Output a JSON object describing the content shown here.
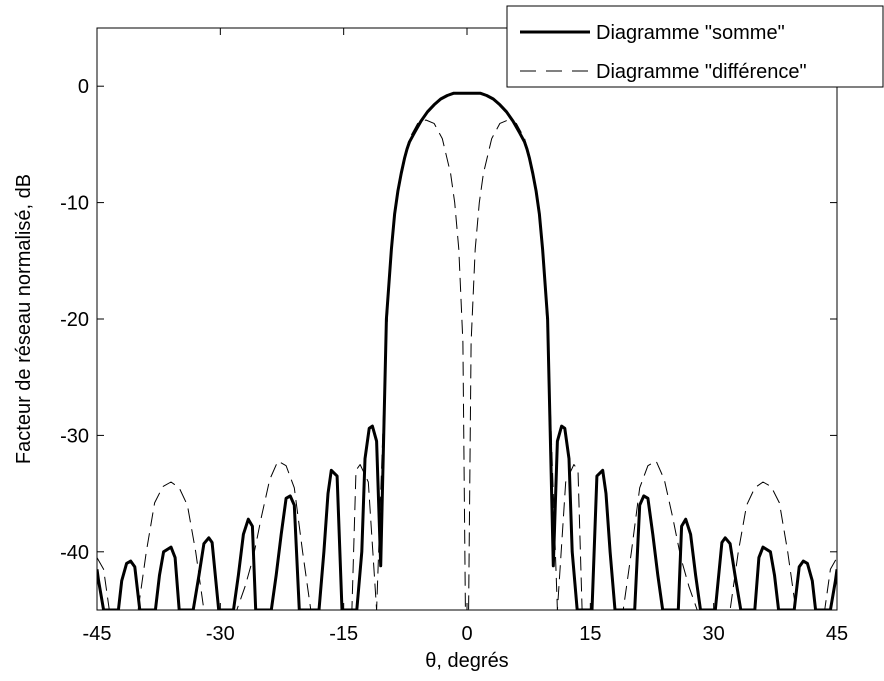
{
  "chart_data": {
    "type": "line",
    "title": "",
    "xlabel": "θ, degrés",
    "ylabel": "Facteur de réseau normalisé, dB",
    "xlim": [
      -45,
      45
    ],
    "ylim": [
      -45,
      5
    ],
    "xticks": [
      -45,
      -30,
      -15,
      0,
      15,
      30,
      45
    ],
    "yticks": [
      0,
      -10,
      -20,
      -30,
      -40
    ],
    "xtick_labels": [
      "-45",
      "-30",
      "-15",
      "0",
      "15",
      "30",
      "45"
    ],
    "ytick_labels": [
      "0",
      "-10",
      "-20",
      "-30",
      "-40"
    ],
    "grid": false,
    "legend_position": "top-right",
    "series": [
      {
        "name": "Diagramme \"somme\"",
        "style": "solid-thick",
        "color": "#000000",
        "x": [
          -45,
          -44.8,
          -44.2,
          -43.6,
          -43.0,
          -42.4,
          -42.0,
          -41.4,
          -40.9,
          -40.4,
          -39.8,
          -39.2,
          -38.5,
          -37.9,
          -37.4,
          -36.9,
          -36.0,
          -35.5,
          -35.0,
          -34.4,
          -33.9,
          -33.3,
          -32.6,
          -32.0,
          -31.4,
          -31.0,
          -30.2,
          -29.6,
          -29.0,
          -28.4,
          -27.8,
          -27.2,
          -26.6,
          -26.1,
          -25.7,
          -25.0,
          -24.4,
          -23.8,
          -23.2,
          -22.6,
          -22.0,
          -21.5,
          -21.0,
          -20.4,
          -19.8,
          -19.2,
          -18.6,
          -18.0,
          -17.4,
          -16.9,
          -16.5,
          -15.8,
          -15.2,
          -14.6,
          -14.0,
          -13.4,
          -12.8,
          -12.4,
          -11.9,
          -11.5,
          -11.0,
          -10.5,
          -9.8,
          -9.2,
          -8.8,
          -8.4,
          -8.0,
          -7.6,
          -7.3,
          -7.0,
          -6.4,
          -5.6,
          -4.8,
          -4.0,
          -3.2,
          -2.4,
          -1.6,
          -0.8,
          0,
          0.8,
          1.6,
          2.4,
          3.2,
          4.0,
          4.8,
          5.6,
          6.4,
          7.0,
          7.3,
          7.6,
          8.0,
          8.4,
          8.8,
          9.2,
          9.8,
          10.5,
          11.0,
          11.5,
          11.9,
          12.4,
          12.8,
          13.4,
          14.0,
          14.6,
          15.2,
          15.8,
          16.5,
          16.9,
          17.4,
          18.0,
          18.6,
          19.2,
          19.8,
          20.4,
          21.0,
          21.5,
          22.0,
          22.6,
          23.2,
          23.8,
          24.4,
          25.0,
          25.7,
          26.1,
          26.6,
          27.2,
          27.8,
          28.4,
          29.0,
          29.6,
          30.2,
          31.0,
          31.4,
          32.0,
          32.6,
          33.3,
          33.9,
          34.4,
          35.0,
          35.5,
          36.0,
          36.9,
          37.4,
          37.9,
          38.5,
          39.2,
          39.8,
          40.4,
          40.9,
          41.4,
          42.0,
          42.4,
          43.0,
          43.6,
          44.2,
          44.8,
          45
        ],
        "y": [
          -41.5,
          -42.5,
          -45,
          -45,
          -45,
          -45,
          -42.5,
          -41.0,
          -40.8,
          -41.3,
          -45,
          -45,
          -45,
          -45,
          -42.0,
          -40.0,
          -39.6,
          -40.5,
          -45,
          -45,
          -45,
          -45,
          -42.0,
          -39.3,
          -38.8,
          -39.2,
          -45,
          -45,
          -45,
          -45,
          -42.0,
          -38.5,
          -37.2,
          -37.8,
          -45,
          -45,
          -45,
          -45,
          -42.0,
          -38.5,
          -35.4,
          -35.2,
          -36.0,
          -45,
          -45,
          -45,
          -45,
          -45,
          -40.0,
          -35.0,
          -33.0,
          -33.5,
          -45,
          -45,
          -45,
          -45,
          -40.0,
          -32.0,
          -29.4,
          -29.2,
          -30.5,
          -41.2,
          -20.0,
          -14.0,
          -11.0,
          -9.0,
          -7.5,
          -6.2,
          -5.4,
          -4.8,
          -4.0,
          -3.0,
          -2.2,
          -1.6,
          -1.1,
          -0.8,
          -0.6,
          -0.6,
          -0.6,
          -0.6,
          -0.6,
          -0.8,
          -1.1,
          -1.6,
          -2.2,
          -3.0,
          -4.0,
          -4.8,
          -5.4,
          -6.2,
          -7.5,
          -9.0,
          -11.0,
          -14.0,
          -20.0,
          -41.2,
          -30.5,
          -29.2,
          -29.4,
          -32.0,
          -40.0,
          -45,
          -45,
          -45,
          -45,
          -33.5,
          -33.0,
          -35.0,
          -40.0,
          -45,
          -45,
          -45,
          -45,
          -45,
          -36.0,
          -35.2,
          -35.4,
          -38.5,
          -42.0,
          -45,
          -45,
          -45,
          -45,
          -37.8,
          -37.2,
          -38.5,
          -42.0,
          -45,
          -45,
          -45,
          -45,
          -39.2,
          -38.8,
          -39.3,
          -42.0,
          -45,
          -45,
          -45,
          -45,
          -40.5,
          -39.6,
          -40.0,
          -42.0,
          -45,
          -45,
          -45,
          -45,
          -41.3,
          -40.8,
          -41.0,
          -42.5,
          -45,
          -45,
          -45,
          -45,
          -42.5,
          -41.5
        ]
      },
      {
        "name": "Diagramme \"différence\"",
        "style": "dashed-thin",
        "color": "#000000",
        "x": [
          -45,
          -44.2,
          -43.5,
          -43.0,
          -42.0,
          -41.0,
          -40.0,
          -39.0,
          -38.0,
          -37.0,
          -36.0,
          -35.0,
          -34.0,
          -33.0,
          -32.0,
          -31.0,
          -30.0,
          -29.0,
          -28.0,
          -27.0,
          -26.0,
          -25.0,
          -24.0,
          -23.0,
          -22.0,
          -21.0,
          -20.0,
          -19.0,
          -18.0,
          -17.0,
          -16.0,
          -15.0,
          -14.0,
          -13.5,
          -13.0,
          -12.0,
          -11.0,
          -10.0,
          -9.5,
          -9.0,
          -8.5,
          -8.0,
          -7.0,
          -6.0,
          -5.0,
          -4.0,
          -3.0,
          -2.0,
          -1.5,
          -1.0,
          -0.5,
          -0.2,
          0,
          0.2,
          0.5,
          1.0,
          1.5,
          2.0,
          3.0,
          4.0,
          5.0,
          6.0,
          7.0,
          8.0,
          8.5,
          9.0,
          9.5,
          10.0,
          11.0,
          12.0,
          13.0,
          13.5,
          14.0,
          15.0,
          16.0,
          17.0,
          18.0,
          19.0,
          20.0,
          21.0,
          22.0,
          23.0,
          24.0,
          25.0,
          26.0,
          27.0,
          28.0,
          29.0,
          30.0,
          31.0,
          32.0,
          33.0,
          34.0,
          35.0,
          36.0,
          37.0,
          38.0,
          39.0,
          40.0,
          41.0,
          42.0,
          43.0,
          43.5,
          44.2,
          45
        ],
        "y": [
          -40.5,
          -41.5,
          -45,
          -45,
          -45,
          -45,
          -45,
          -40.0,
          -35.8,
          -34.4,
          -34.0,
          -34.5,
          -36.0,
          -40.0,
          -45,
          -45,
          -45,
          -45,
          -45,
          -43.0,
          -40.5,
          -37.0,
          -33.8,
          -32.2,
          -32.6,
          -34.5,
          -40.0,
          -45,
          -45,
          -45,
          -45,
          -45,
          -45,
          -33.0,
          -32.5,
          -34.0,
          -45,
          -25.0,
          -17.0,
          -12.5,
          -9.5,
          -7.2,
          -4.5,
          -3.2,
          -2.9,
          -3.2,
          -4.5,
          -7.5,
          -10.0,
          -14.0,
          -22.0,
          -45,
          -45,
          -45,
          -22.0,
          -14.0,
          -10.0,
          -7.5,
          -4.5,
          -3.2,
          -2.9,
          -3.2,
          -4.5,
          -7.2,
          -9.5,
          -12.5,
          -17.0,
          -25.0,
          -45,
          -34.0,
          -32.5,
          -33.0,
          -45,
          -45,
          -45,
          -45,
          -45,
          -45,
          -40.0,
          -34.5,
          -32.6,
          -32.2,
          -33.8,
          -37.0,
          -40.5,
          -43.0,
          -45,
          -45,
          -45,
          -45,
          -45,
          -40.0,
          -36.0,
          -34.5,
          -34.0,
          -34.4,
          -35.8,
          -40.0,
          -45,
          -45,
          -45,
          -45,
          -45,
          -41.5,
          -40.5
        ]
      }
    ]
  }
}
